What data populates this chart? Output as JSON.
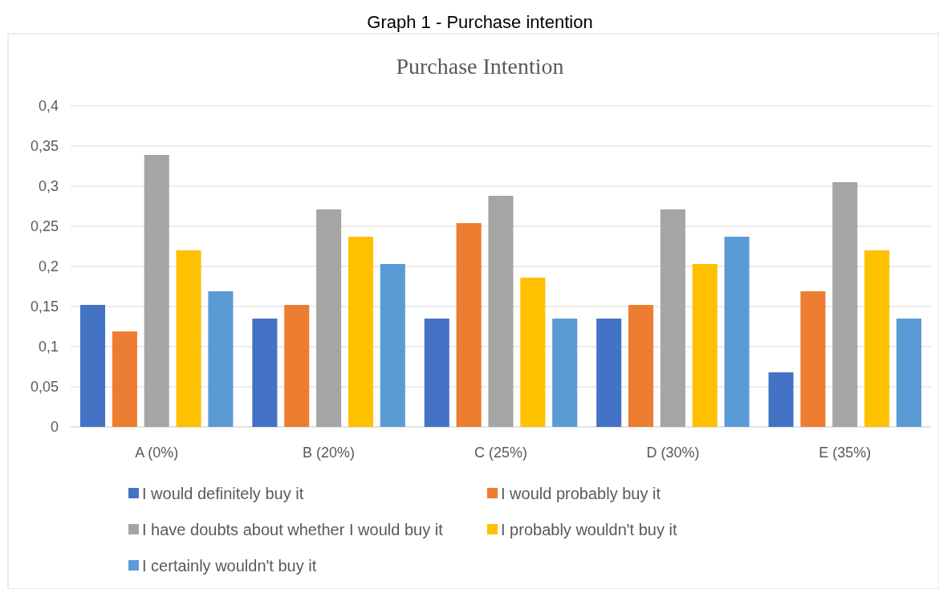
{
  "chart_data": {
    "type": "bar",
    "title": "Graph 1 - Purchase intention",
    "subtitle": "Purchase Intention",
    "categories": [
      "A (0%)",
      "B (20%)",
      "C (25%)",
      "D (30%)",
      "E (35%)"
    ],
    "series": [
      {
        "name": "I would definitely buy it",
        "color": "#4472c4",
        "values": [
          0.152,
          0.135,
          0.135,
          0.135,
          0.068
        ]
      },
      {
        "name": "I would probably buy it",
        "color": "#ed7d31",
        "values": [
          0.119,
          0.152,
          0.254,
          0.152,
          0.169
        ]
      },
      {
        "name": "I have doubts about whether I would buy it",
        "color": "#a5a5a5",
        "values": [
          0.339,
          0.271,
          0.288,
          0.271,
          0.305
        ]
      },
      {
        "name": "I probably wouldn't buy it",
        "color": "#ffc000",
        "values": [
          0.22,
          0.237,
          0.186,
          0.203,
          0.22
        ]
      },
      {
        "name": "I certainly wouldn't buy it",
        "color": "#5b9bd5",
        "values": [
          0.169,
          0.203,
          0.135,
          0.237,
          0.135
        ]
      }
    ],
    "ylim": [
      0,
      0.4
    ],
    "yticks": [
      {
        "value": 0,
        "label": "0"
      },
      {
        "value": 0.05,
        "label": "0,05"
      },
      {
        "value": 0.1,
        "label": "0,1"
      },
      {
        "value": 0.15,
        "label": "0,15"
      },
      {
        "value": 0.2,
        "label": "0,2"
      },
      {
        "value": 0.25,
        "label": "0,25"
      },
      {
        "value": 0.3,
        "label": "0,3"
      },
      {
        "value": 0.35,
        "label": "0,35"
      },
      {
        "value": 0.4,
        "label": "0,4"
      }
    ],
    "grid": "y",
    "legend": "bottom"
  }
}
